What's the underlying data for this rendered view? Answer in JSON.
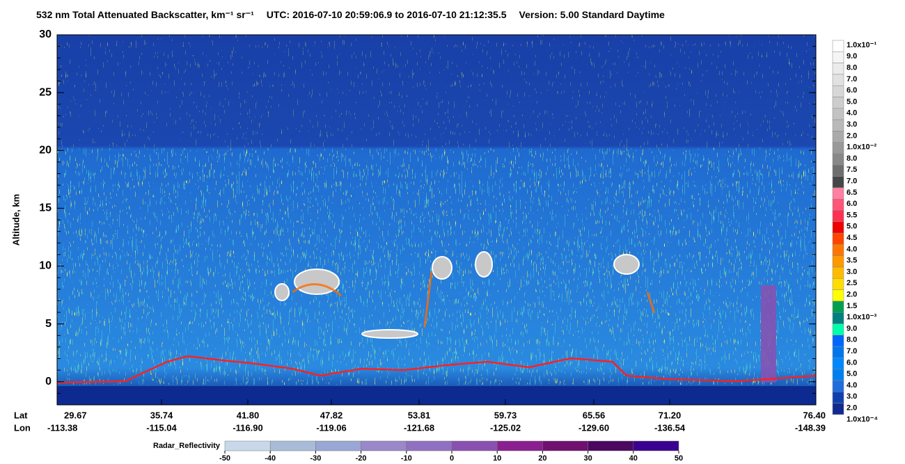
{
  "chart_data": {
    "type": "curtain",
    "title": {
      "product": "532 nm Total Attenuated Backscatter, km⁻¹ sr⁻¹",
      "utc": "UTC:  2016-07-10 20:59:06.9  to  2016-07-10 21:12:35.5",
      "version": "Version: 5.00  Standard  Daytime"
    },
    "y_label": "Altitude, km",
    "ylim": [
      -2,
      30
    ],
    "yticks": [
      0,
      5,
      10,
      15,
      20,
      25,
      30
    ],
    "lat_label": "Lat",
    "lon_label": "Lon",
    "x_ticks": [
      {
        "lat": "29.67",
        "lon": "-113.38"
      },
      {
        "lat": "35.74",
        "lon": "-115.04"
      },
      {
        "lat": "41.80",
        "lon": "-116.90"
      },
      {
        "lat": "47.82",
        "lon": "-119.06"
      },
      {
        "lat": "53.81",
        "lon": "-121.68"
      },
      {
        "lat": "59.73",
        "lon": "-125.02"
      },
      {
        "lat": "65.56",
        "lon": "-129.60"
      },
      {
        "lat": "71.20",
        "lon": "-136.54"
      },
      {
        "lat": "76.40",
        "lon": "-148.39"
      }
    ],
    "backscatter_colorbar": {
      "labels": [
        "1.0x10⁻¹",
        "9.0",
        "8.0",
        "7.0",
        "6.0",
        "5.0",
        "4.0",
        "3.0",
        "2.0",
        "1.0x10⁻²",
        "8.0",
        "7.5",
        "7.0",
        "6.5",
        "6.0",
        "5.5",
        "5.0",
        "4.5",
        "4.0",
        "3.5",
        "3.0",
        "2.5",
        "2.0",
        "1.5",
        "1.0x10⁻³",
        "9.0",
        "8.0",
        "7.0",
        "6.0",
        "5.0",
        "4.0",
        "3.0",
        "2.0",
        "1.0x10⁻⁴"
      ],
      "colors": [
        "#ffffff",
        "#f5f5f5",
        "#ebebeb",
        "#e1e1e1",
        "#d7d7d7",
        "#cdcdcd",
        "#c3c3c3",
        "#b9b9b9",
        "#aaaaaa",
        "#999999",
        "#888888",
        "#6e6e6e",
        "#464646",
        "#ff80a0",
        "#ff5577",
        "#ff3050",
        "#ee0000",
        "#ff4400",
        "#ff7700",
        "#ff9900",
        "#ffbb00",
        "#ffdd00",
        "#ffff00",
        "#00a050",
        "#008080",
        "#00ffaa",
        "#0066ff",
        "#0077ee",
        "#0088ff",
        "#0080f0",
        "#1e6fdd",
        "#1040b0",
        "#102a90"
      ]
    },
    "radar_colorbar": {
      "label": "Radar_Reflectivity",
      "ticks": [
        -50,
        -40,
        -30,
        -20,
        -10,
        0,
        10,
        20,
        30,
        40,
        50
      ],
      "colors": [
        "#c8d8ea",
        "#a8bcd8",
        "#9aa6d4",
        "#9a88c8",
        "#9070c0",
        "#8a50b0",
        "#8a2090",
        "#701070",
        "#4a0860",
        "#3a0090"
      ]
    }
  }
}
